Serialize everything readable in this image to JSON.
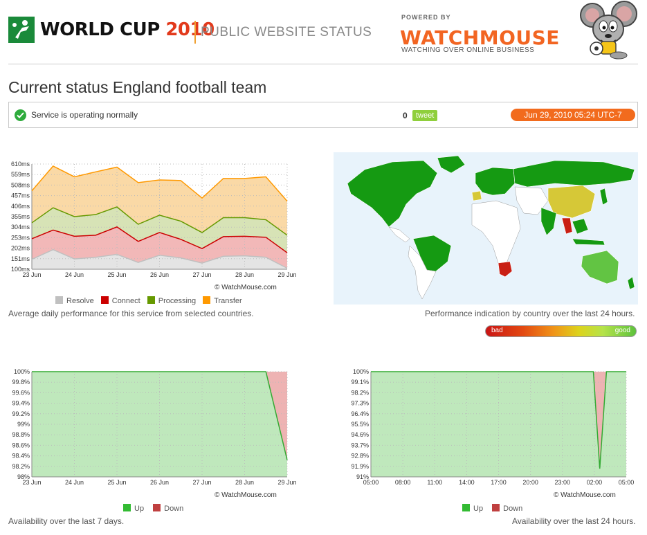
{
  "header": {
    "wc_title": "WORLD CUP",
    "wc_year": "2010",
    "public_status": "PUBLIC WEBSITE STATUS",
    "powered_by": "POWERED BY",
    "brand": "WATCHMOUSE",
    "tagline": "WATCHING OVER ONLINE BUSINESS"
  },
  "page": {
    "title": "Current status England football team"
  },
  "status": {
    "text": "Service is operating normally",
    "tweet_count": "0",
    "tweet_label": "tweet",
    "datetime": "Jun 29, 2010 05:24 UTC-7"
  },
  "map": {
    "caption": "Performance indication by country over the last 24 hours.",
    "scale_bad": "bad",
    "scale_good": "good",
    "colors": {
      "good": "#159a12",
      "medium": "#d6c837",
      "light_good": "#62c443",
      "bad": "#c91f14",
      "none": "#ffffff"
    }
  },
  "charts": {
    "credit": "© WatchMouse.com",
    "performance_caption": "Average daily performance for this service from selected countries.",
    "week_caption": "Availability over the last 7 days.",
    "day_caption": "Availability over the last 24 hours.",
    "legend_up": "Up",
    "legend_down": "Down"
  },
  "chart_data": [
    {
      "type": "area",
      "y_ticks": [
        "610ms",
        "559ms",
        "508ms",
        "457ms",
        "406ms",
        "355ms",
        "304ms",
        "253ms",
        "202ms",
        "151ms",
        "100ms"
      ],
      "ylim": [
        100,
        610
      ],
      "x_ticks": [
        "23 Jun",
        "24 Jun",
        "25 Jun",
        "26 Jun",
        "27 Jun",
        "28 Jun",
        "29 Jun"
      ],
      "x": [
        0,
        0.5,
        1,
        1.5,
        2,
        2.5,
        3,
        3.5,
        4,
        4.5,
        5,
        5.5,
        6
      ],
      "stacked": true,
      "series": [
        {
          "name": "Resolve",
          "color": "#c0c0c0",
          "values": [
            148,
            195,
            150,
            158,
            172,
            133,
            168,
            155,
            130,
            163,
            165,
            158,
            105
          ]
        },
        {
          "name": "Connect",
          "color": "#cc0000",
          "values": [
            248,
            290,
            260,
            265,
            305,
            235,
            278,
            245,
            200,
            258,
            260,
            255,
            180
          ]
        },
        {
          "name": "Processing",
          "color": "#669900",
          "values": [
            325,
            398,
            355,
            365,
            402,
            318,
            362,
            333,
            278,
            350,
            350,
            340,
            265
          ]
        },
        {
          "name": "Transfer",
          "color": "#ff9900",
          "values": [
            480,
            600,
            548,
            572,
            595,
            520,
            533,
            530,
            445,
            540,
            540,
            548,
            430
          ]
        }
      ]
    },
    {
      "type": "area",
      "y_ticks": [
        "100%",
        "99.8%",
        "99.6%",
        "99.4%",
        "99.2%",
        "99%",
        "98.8%",
        "98.6%",
        "98.4%",
        "98.2%",
        "98%"
      ],
      "ylim": [
        98,
        100
      ],
      "x_ticks": [
        "23 Jun",
        "24 Jun",
        "25 Jun",
        "26 Jun",
        "27 Jun",
        "28 Jun",
        "29 Jun"
      ],
      "x": [
        0,
        5.5,
        6
      ],
      "series": [
        {
          "name": "Up",
          "color": "#33aa33",
          "values": [
            100,
            100,
            98.32
          ]
        }
      ]
    },
    {
      "type": "area",
      "y_ticks": [
        "100%",
        "99.1%",
        "98.2%",
        "97.3%",
        "96.4%",
        "95.5%",
        "94.6%",
        "93.7%",
        "92.8%",
        "91.9%",
        "91%"
      ],
      "ylim": [
        91,
        100
      ],
      "x_ticks": [
        "05:00",
        "08:00",
        "11:00",
        "14:00",
        "17:00",
        "20:00",
        "23:00",
        "02:00",
        "05:00"
      ],
      "x": [
        0,
        6.97,
        7.17,
        7.38,
        8
      ],
      "series": [
        {
          "name": "Up",
          "color": "#33aa33",
          "values": [
            100,
            100,
            91.7,
            100,
            100
          ]
        }
      ]
    }
  ]
}
